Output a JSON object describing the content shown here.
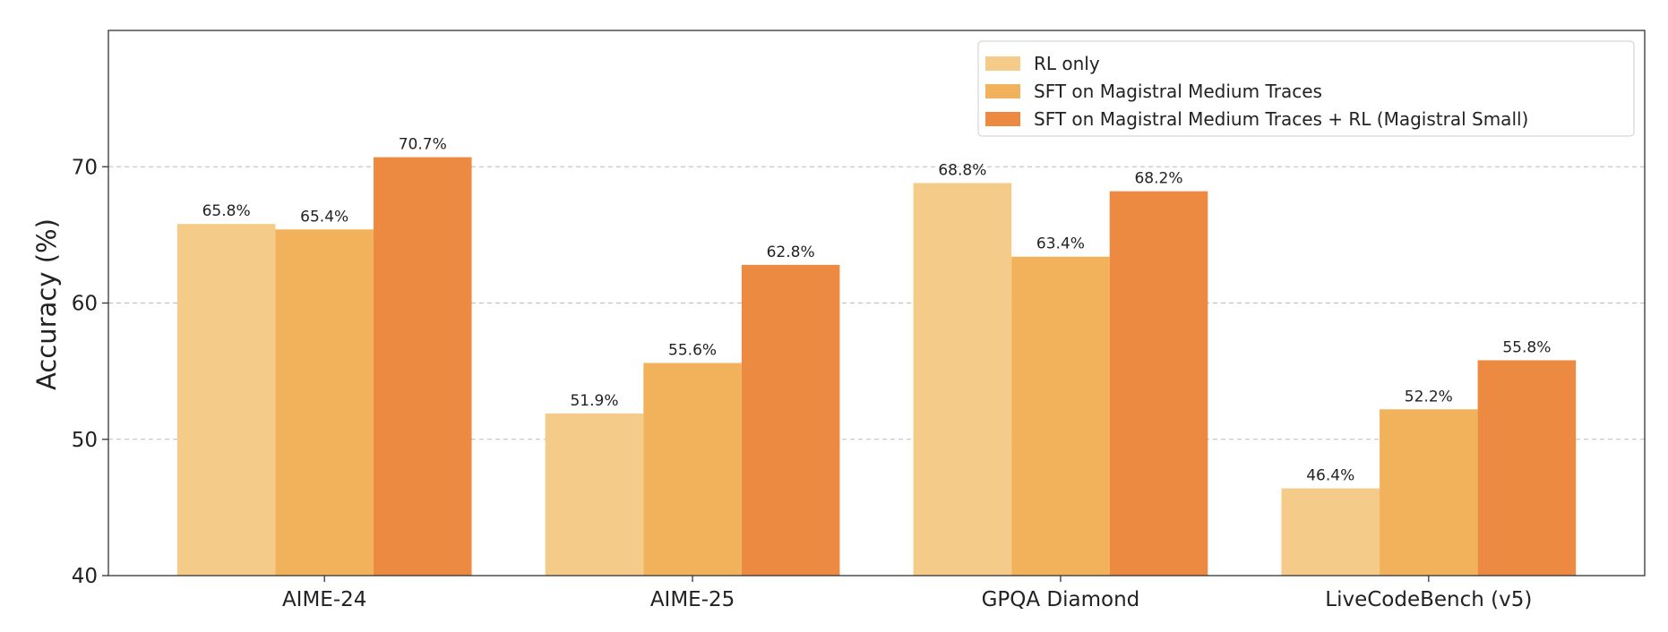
{
  "chart_data": {
    "type": "bar",
    "title": "",
    "xlabel": "",
    "ylabel": "Accuracy (%)",
    "ylim": [
      40,
      80
    ],
    "yticks": [
      40,
      50,
      60,
      70
    ],
    "grid": "y-dashed",
    "legend_position": "top-right",
    "categories": [
      "AIME-24",
      "AIME-25",
      "GPQA Diamond",
      "LiveCodeBench (v5)"
    ],
    "series": [
      {
        "name": "RL only",
        "color": "#F5CB8A",
        "values": [
          65.8,
          51.9,
          68.8,
          46.4
        ],
        "labels": [
          "65.8%",
          "51.9%",
          "68.8%",
          "46.4%"
        ]
      },
      {
        "name": "SFT on Magistral Medium Traces",
        "color": "#F2B25C",
        "values": [
          65.4,
          55.6,
          63.4,
          52.2
        ],
        "labels": [
          "65.4%",
          "55.6%",
          "63.4%",
          "52.2%"
        ]
      },
      {
        "name": "SFT on Magistral Medium Traces + RL (Magistral Small)",
        "color": "#EC8A42",
        "values": [
          70.7,
          62.8,
          68.2,
          55.8
        ],
        "labels": [
          "70.7%",
          "62.8%",
          "68.2%",
          "55.8%"
        ]
      }
    ]
  }
}
